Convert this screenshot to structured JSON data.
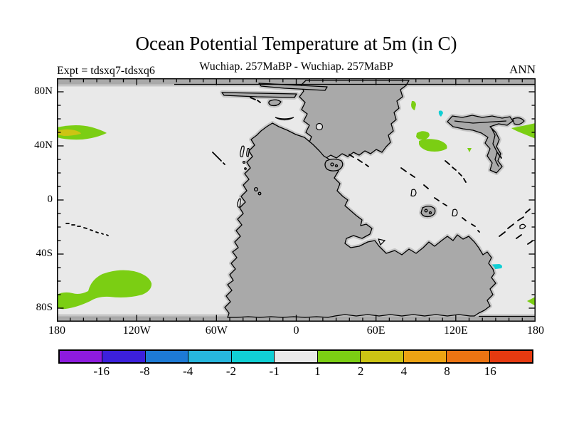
{
  "header": {
    "title": "Ocean Potential Temperature at 5m (in C)",
    "experiment_label": "Expt = tdsxq7-tdsxq6",
    "period_label": "Wuchiap. 257MaBP - Wuchiap. 257MaBP",
    "season_label": "ANN"
  },
  "map": {
    "x_tick_labels": [
      "180",
      "120W",
      "60W",
      "0",
      "60E",
      "120E",
      "180"
    ],
    "y_tick_labels": [
      "80N",
      "40N",
      "0",
      "40S",
      "80S"
    ]
  },
  "colorbar": {
    "labels": [
      "-16",
      "-8",
      "-4",
      "-2",
      "-1",
      "1",
      "2",
      "4",
      "8",
      "16"
    ],
    "segments": [
      "#8d1bdf",
      "#3c20dc",
      "#1d7ad5",
      "#27b6dd",
      "#11cfd4",
      "#e9e9e9",
      "#7bce13",
      "#ccc414",
      "#eca313",
      "#ec7412",
      "#e63a10"
    ]
  },
  "colors": {
    "background": "#ffffff",
    "ocean": "#e9e9e9",
    "land": "#a9a9a9",
    "land_halo": "#c6c6c6",
    "coastline": "#000000",
    "frame": "#000000",
    "anomaly_green": "#7bce13",
    "anomaly_olive": "#ccc414",
    "anomaly_cyan": "#11cfd4"
  },
  "chart_data": {
    "type": "heatmap",
    "title": "Ocean Potential Temperature at 5m (in C)",
    "subtitle": "Wuchiap. 257MaBP - Wuchiap. 257MaBP",
    "experiment": "Expt = tdsxq7-tdsxq6",
    "season": "ANN",
    "units": "degrees C",
    "x_axis": {
      "tick_labels": [
        "180",
        "120W",
        "60W",
        "0",
        "60E",
        "120E",
        "180"
      ],
      "range": [
        -180,
        180
      ],
      "major_tick_deg": 60,
      "minor_tick_deg": 10
    },
    "y_axis": {
      "tick_labels": [
        "80N",
        "40N",
        "0",
        "40S",
        "80S"
      ],
      "range": [
        -90,
        90
      ],
      "major_tick_deg": 40,
      "minor_tick_deg": 10
    },
    "colorbar_boundaries": [
      -16,
      -8,
      -4,
      -2,
      -1,
      1,
      2,
      4,
      8,
      16
    ],
    "colorbar_colors": [
      "#8d1bdf",
      "#3c20dc",
      "#1d7ad5",
      "#27b6dd",
      "#11cfd4",
      "#e9e9e9",
      "#7bce13",
      "#ccc414",
      "#eca313",
      "#ec7412",
      "#e63a10"
    ],
    "background_field": "difference between -1 and 1 C over most of the ocean",
    "anomalies": [
      {
        "lon_range": [
          -180,
          -143
        ],
        "lat_range": [
          48,
          55
        ],
        "value": "1 to 2 (core 2 to 4)"
      },
      {
        "lon_range": [
          -180,
          -108
        ],
        "lat_range": [
          -82,
          -55
        ],
        "value": "1 to 2"
      },
      {
        "lon_range": [
          90,
          114
        ],
        "lat_range": [
          35,
          50
        ],
        "value": "1 to 2"
      },
      {
        "lon_range": [
          161,
          180
        ],
        "lat_range": [
          45,
          56
        ],
        "value": "1 to 2"
      },
      {
        "lon_range": [
          173,
          180
        ],
        "lat_range": [
          -78,
          -73
        ],
        "value": "1 to 2"
      },
      {
        "lon_range": [
          85,
          89
        ],
        "lat_range": [
          66,
          73
        ],
        "value": "1 to 2"
      },
      {
        "lon_range": [
          129,
          132
        ],
        "lat_range": [
          36,
          39
        ],
        "value": "1 to 2"
      },
      {
        "lon_range": [
          106,
          109
        ],
        "lat_range": [
          63,
          66
        ],
        "value": "-2 to -1"
      },
      {
        "lon_range": [
          142,
          155
        ],
        "lat_range": [
          -52,
          -48
        ],
        "value": "-2 to -1"
      }
    ]
  }
}
